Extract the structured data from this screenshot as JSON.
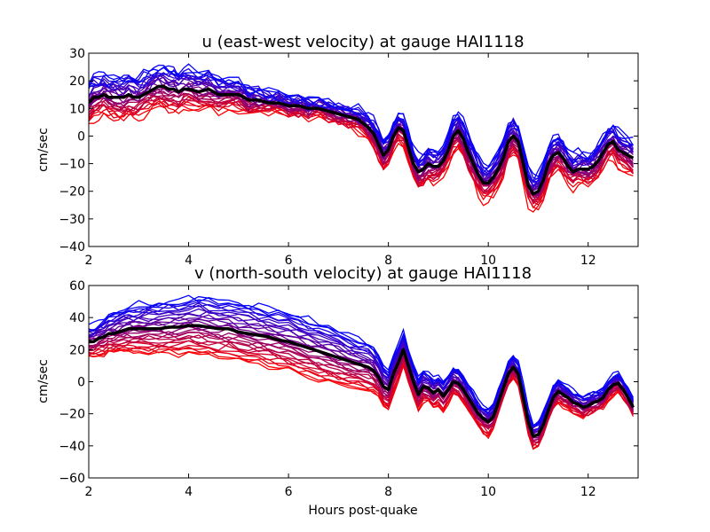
{
  "chart_data": [
    {
      "type": "line",
      "title": "u (east-west velocity) at gauge HAI1118",
      "xlabel": "",
      "ylabel": "cm/sec",
      "xlim": [
        2,
        13
      ],
      "ylim": [
        -40,
        30
      ],
      "xticks": [
        2,
        4,
        6,
        8,
        10,
        12
      ],
      "yticks": [
        -40,
        -30,
        -20,
        -10,
        0,
        10,
        20,
        30
      ],
      "grid": false,
      "ensemble_count": 30,
      "ensemble_colors": {
        "low": "#ff0000",
        "high": "#0000ff"
      },
      "mean_color": "#000000",
      "mean_series": {
        "x": [
          2.0,
          2.1,
          2.2,
          2.3,
          2.4,
          2.5,
          2.6,
          2.7,
          2.8,
          2.9,
          3.0,
          3.1,
          3.2,
          3.3,
          3.4,
          3.5,
          3.6,
          3.7,
          3.8,
          3.9,
          4.0,
          4.2,
          4.4,
          4.6,
          4.8,
          5.0,
          5.2,
          5.4,
          5.6,
          5.8,
          6.0,
          6.2,
          6.4,
          6.6,
          6.8,
          7.0,
          7.2,
          7.4,
          7.6,
          7.7,
          7.8,
          7.9,
          8.0,
          8.1,
          8.2,
          8.3,
          8.4,
          8.5,
          8.6,
          8.7,
          8.8,
          8.9,
          9.0,
          9.1,
          9.2,
          9.3,
          9.4,
          9.5,
          9.6,
          9.7,
          9.8,
          9.9,
          10.0,
          10.1,
          10.2,
          10.3,
          10.4,
          10.5,
          10.6,
          10.7,
          10.8,
          10.9,
          11.0,
          11.1,
          11.2,
          11.3,
          11.4,
          11.5,
          11.6,
          11.7,
          11.8,
          11.9,
          12.0,
          12.1,
          12.2,
          12.3,
          12.4,
          12.5,
          12.6,
          12.7,
          12.8,
          12.9
        ],
        "y": [
          12,
          14,
          14,
          15,
          14,
          14,
          14,
          14,
          15,
          14,
          14,
          15,
          16,
          17,
          18,
          18,
          17,
          17,
          16,
          17,
          17,
          16,
          17,
          15,
          15,
          15,
          13,
          13,
          12,
          12,
          11,
          11,
          10,
          10,
          9,
          8,
          7,
          6,
          3,
          1,
          -3,
          -7,
          -5,
          0,
          3,
          2,
          -4,
          -10,
          -13,
          -12,
          -10,
          -11,
          -11,
          -9,
          -5,
          0,
          2,
          -1,
          -6,
          -10,
          -14,
          -17,
          -17,
          -15,
          -12,
          -8,
          -2,
          0,
          -2,
          -10,
          -18,
          -21,
          -20,
          -16,
          -10,
          -7,
          -6,
          -8,
          -11,
          -13,
          -12,
          -12,
          -12,
          -11,
          -9,
          -6,
          -3,
          -2,
          -5,
          -6,
          -7,
          -8
        ]
      },
      "spread": {
        "x": [
          2,
          2.5,
          3,
          3.5,
          4,
          4.5,
          5,
          5.5,
          6,
          6.5,
          7,
          7.5,
          8,
          8.5,
          9,
          9.5,
          10,
          10.5,
          11,
          11.5,
          12,
          12.5,
          12.9
        ],
        "amplitude": [
          7,
          7,
          7,
          7,
          7,
          6,
          5,
          4,
          3,
          3,
          3,
          4,
          5,
          5,
          5,
          6,
          6,
          6,
          6,
          6,
          5,
          6,
          6
        ]
      }
    },
    {
      "type": "line",
      "title": "v (north-south velocity) at gauge HAI1118",
      "xlabel": "Hours post-quake",
      "ylabel": "cm/sec",
      "xlim": [
        2,
        13
      ],
      "ylim": [
        -60,
        60
      ],
      "xticks": [
        2,
        4,
        6,
        8,
        10,
        12
      ],
      "yticks": [
        -60,
        -40,
        -20,
        0,
        20,
        40,
        60
      ],
      "grid": false,
      "ensemble_count": 30,
      "ensemble_colors": {
        "low": "#ff0000",
        "high": "#0000ff"
      },
      "mean_color": "#000000",
      "mean_series": {
        "x": [
          2.0,
          2.1,
          2.2,
          2.3,
          2.4,
          2.5,
          2.6,
          2.7,
          2.8,
          2.9,
          3.0,
          3.2,
          3.4,
          3.6,
          3.8,
          4.0,
          4.2,
          4.4,
          4.6,
          4.8,
          5.0,
          5.2,
          5.4,
          5.6,
          5.8,
          6.0,
          6.2,
          6.4,
          6.6,
          6.8,
          7.0,
          7.2,
          7.4,
          7.6,
          7.7,
          7.8,
          7.9,
          8.0,
          8.1,
          8.2,
          8.3,
          8.4,
          8.5,
          8.6,
          8.7,
          8.8,
          8.9,
          9.0,
          9.1,
          9.2,
          9.3,
          9.4,
          9.5,
          9.6,
          9.7,
          9.8,
          9.9,
          10.0,
          10.1,
          10.2,
          10.3,
          10.4,
          10.5,
          10.6,
          10.7,
          10.8,
          10.9,
          11.0,
          11.1,
          11.2,
          11.3,
          11.4,
          11.5,
          11.6,
          11.7,
          11.8,
          11.9,
          12.0,
          12.1,
          12.2,
          12.3,
          12.4,
          12.5,
          12.6,
          12.7,
          12.8,
          12.9
        ],
        "y": [
          25,
          25,
          27,
          28,
          30,
          30,
          31,
          32,
          33,
          33,
          33,
          33,
          33,
          34,
          34,
          35,
          35,
          34,
          33,
          33,
          31,
          30,
          29,
          28,
          26,
          25,
          23,
          21,
          19,
          17,
          15,
          13,
          11,
          9,
          7,
          3,
          -3,
          -5,
          5,
          12,
          20,
          10,
          0,
          -8,
          -3,
          -4,
          -7,
          -5,
          -9,
          -5,
          0,
          -1,
          -5,
          -10,
          -15,
          -20,
          -23,
          -25,
          -22,
          -13,
          -4,
          5,
          9,
          5,
          -10,
          -25,
          -34,
          -33,
          -27,
          -18,
          -10,
          -6,
          -8,
          -10,
          -13,
          -14,
          -16,
          -15,
          -13,
          -12,
          -10,
          -5,
          -2,
          -1,
          -5,
          -10,
          -16
        ]
      },
      "spread": {
        "x": [
          2,
          2.5,
          3,
          3.5,
          4,
          4.5,
          5,
          5.5,
          6,
          6.5,
          7,
          7.5,
          8,
          8.5,
          9,
          9.5,
          10,
          10.5,
          11,
          11.5,
          12,
          12.5,
          12.9
        ],
        "amplitude": [
          9,
          12,
          15,
          16,
          17,
          18,
          18,
          18,
          18,
          18,
          17,
          15,
          12,
          10,
          9,
          8,
          8,
          7,
          7,
          7,
          6,
          6,
          5
        ]
      }
    }
  ]
}
